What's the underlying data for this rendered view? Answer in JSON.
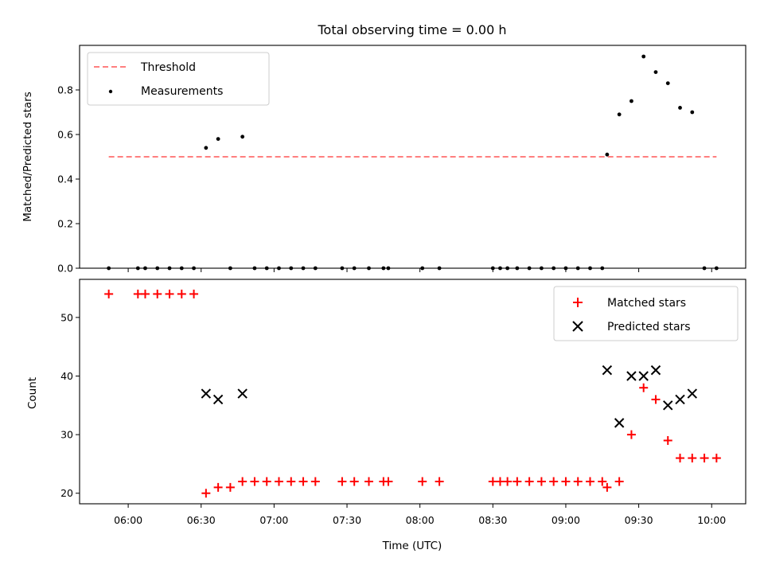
{
  "chart_data": [
    {
      "type": "scatter",
      "title": "Total observing time = 0.00 h",
      "xlabel": "",
      "ylabel": "Matched/Predicted stars",
      "xlim": [
        "05:40",
        "10:14"
      ],
      "ylim": [
        0.0,
        1.0
      ],
      "yticks": [
        "0.0",
        "0.2",
        "0.4",
        "0.6",
        "0.8"
      ],
      "grid": false,
      "legend_position": "top-left",
      "threshold": {
        "name": "Threshold",
        "value": 0.5,
        "x_range": [
          "05:52",
          "10:02"
        ],
        "color": "#ff7f7f"
      },
      "series": [
        {
          "name": "Measurements",
          "color": "#000000",
          "marker": "dot",
          "points": [
            [
              "05:52",
              0
            ],
            [
              "06:04",
              0
            ],
            [
              "06:07",
              0
            ],
            [
              "06:12",
              0
            ],
            [
              "06:17",
              0
            ],
            [
              "06:22",
              0
            ],
            [
              "06:27",
              0
            ],
            [
              "06:32",
              0.54
            ],
            [
              "06:37",
              0.58
            ],
            [
              "06:42",
              0
            ],
            [
              "06:47",
              0.59
            ],
            [
              "06:52",
              0
            ],
            [
              "06:57",
              0
            ],
            [
              "07:02",
              0
            ],
            [
              "07:07",
              0
            ],
            [
              "07:12",
              0
            ],
            [
              "07:17",
              0
            ],
            [
              "07:28",
              0
            ],
            [
              "07:33",
              0
            ],
            [
              "07:39",
              0
            ],
            [
              "07:45",
              0
            ],
            [
              "07:47",
              0
            ],
            [
              "08:01",
              0
            ],
            [
              "08:08",
              0
            ],
            [
              "08:30",
              0
            ],
            [
              "08:33",
              0
            ],
            [
              "08:36",
              0
            ],
            [
              "08:40",
              0
            ],
            [
              "08:45",
              0
            ],
            [
              "08:50",
              0
            ],
            [
              "08:55",
              0
            ],
            [
              "09:00",
              0
            ],
            [
              "09:05",
              0
            ],
            [
              "09:10",
              0
            ],
            [
              "09:15",
              0
            ],
            [
              "09:17",
              0.51
            ],
            [
              "09:22",
              0.69
            ],
            [
              "09:27",
              0.75
            ],
            [
              "09:32",
              0.95
            ],
            [
              "09:37",
              0.88
            ],
            [
              "09:42",
              0.83
            ],
            [
              "09:47",
              0.72
            ],
            [
              "09:52",
              0.7
            ],
            [
              "09:57",
              0
            ],
            [
              "10:02",
              0
            ]
          ]
        }
      ]
    },
    {
      "type": "scatter",
      "title": "",
      "xlabel": "Time (UTC)",
      "ylabel": "Count",
      "xlim": [
        "05:40",
        "10:14"
      ],
      "ylim": [
        18.2,
        56.5
      ],
      "yticks": [
        "20",
        "30",
        "40",
        "50"
      ],
      "xticks": [
        "06:00",
        "06:30",
        "07:00",
        "07:30",
        "08:00",
        "08:30",
        "09:00",
        "09:30",
        "10:00"
      ],
      "grid": false,
      "legend_position": "top-right",
      "series": [
        {
          "name": "Matched stars",
          "color": "#ff0000",
          "marker": "plus",
          "points": [
            [
              "05:52",
              54
            ],
            [
              "06:04",
              54
            ],
            [
              "06:07",
              54
            ],
            [
              "06:12",
              54
            ],
            [
              "06:17",
              54
            ],
            [
              "06:22",
              54
            ],
            [
              "06:27",
              54
            ],
            [
              "06:32",
              20
            ],
            [
              "06:37",
              21
            ],
            [
              "06:42",
              21
            ],
            [
              "06:47",
              22
            ],
            [
              "06:52",
              22
            ],
            [
              "06:57",
              22
            ],
            [
              "07:02",
              22
            ],
            [
              "07:07",
              22
            ],
            [
              "07:12",
              22
            ],
            [
              "07:17",
              22
            ],
            [
              "07:28",
              22
            ],
            [
              "07:33",
              22
            ],
            [
              "07:39",
              22
            ],
            [
              "07:45",
              22
            ],
            [
              "07:47",
              22
            ],
            [
              "08:01",
              22
            ],
            [
              "08:08",
              22
            ],
            [
              "08:30",
              22
            ],
            [
              "08:33",
              22
            ],
            [
              "08:36",
              22
            ],
            [
              "08:40",
              22
            ],
            [
              "08:45",
              22
            ],
            [
              "08:50",
              22
            ],
            [
              "08:55",
              22
            ],
            [
              "09:00",
              22
            ],
            [
              "09:05",
              22
            ],
            [
              "09:10",
              22
            ],
            [
              "09:15",
              22
            ],
            [
              "09:17",
              21
            ],
            [
              "09:22",
              22
            ],
            [
              "09:27",
              30
            ],
            [
              "09:32",
              38
            ],
            [
              "09:37",
              36
            ],
            [
              "09:42",
              29
            ],
            [
              "09:47",
              26
            ],
            [
              "09:52",
              26
            ],
            [
              "09:57",
              26
            ],
            [
              "10:02",
              26
            ]
          ]
        },
        {
          "name": "Predicted stars",
          "color": "#000000",
          "marker": "x",
          "points": [
            [
              "06:32",
              37
            ],
            [
              "06:37",
              36
            ],
            [
              "06:47",
              37
            ],
            [
              "09:17",
              41
            ],
            [
              "09:22",
              32
            ],
            [
              "09:27",
              40
            ],
            [
              "09:32",
              40
            ],
            [
              "09:37",
              41
            ],
            [
              "09:42",
              35
            ],
            [
              "09:47",
              36
            ],
            [
              "09:52",
              37
            ]
          ]
        }
      ]
    }
  ]
}
